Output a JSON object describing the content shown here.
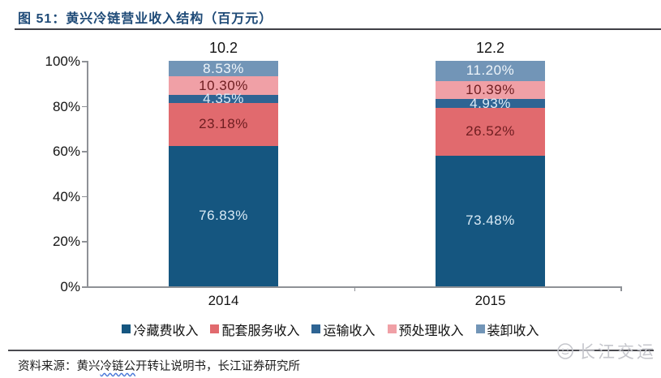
{
  "header": {
    "title": "图 51：黄兴冷链营业收入结构（百万元）"
  },
  "chart_data": {
    "type": "bar",
    "stacked": true,
    "percent_stacked": true,
    "title": "黄兴冷链营业收入结构（百万元）",
    "categories": [
      "2014",
      "2015"
    ],
    "totals": [
      "10.2",
      "12.2"
    ],
    "series": [
      {
        "name": "冷藏费收入",
        "color": "#155680",
        "label_color": "#d9eaf5",
        "values": [
          76.83,
          73.48
        ]
      },
      {
        "name": "配套服务收入",
        "color": "#e16a6e",
        "label_color": "#6e1d20",
        "values": [
          23.18,
          26.52
        ]
      },
      {
        "name": "运输收入",
        "color": "#2e6493",
        "label_color": "#ddebf6",
        "values": [
          4.35,
          4.93
        ]
      },
      {
        "name": "预处理收入",
        "color": "#f0a0a6",
        "label_color": "#6e1d20",
        "values": [
          10.3,
          10.39
        ]
      },
      {
        "name": "装卸收入",
        "color": "#7295b7",
        "label_color": "#eff5fa",
        "values": [
          8.53,
          11.2
        ]
      }
    ],
    "value_labels": [
      [
        "76.83%",
        "23.18%",
        "4.35%",
        "10.30%",
        "8.53%"
      ],
      [
        "73.48%",
        "26.52%",
        "4.93%",
        "10.39%",
        "11.20%"
      ]
    ],
    "y_ticks": [
      "100%",
      "80%",
      "60%",
      "40%",
      "20%",
      "0%"
    ],
    "ylim": [
      0,
      100
    ],
    "grid": false,
    "legend_position": "bottom"
  },
  "footer": {
    "source_prefix": "资料来源：黄兴",
    "source_wavy": "冷链公",
    "source_suffix": "开转让说明书，长江证券研究所",
    "watermark": "长江交运"
  },
  "colors": {
    "title": "#1e4a77",
    "axis": "#8e9196",
    "rule": "#3f3f46",
    "watermark": "#c6c7cd"
  }
}
